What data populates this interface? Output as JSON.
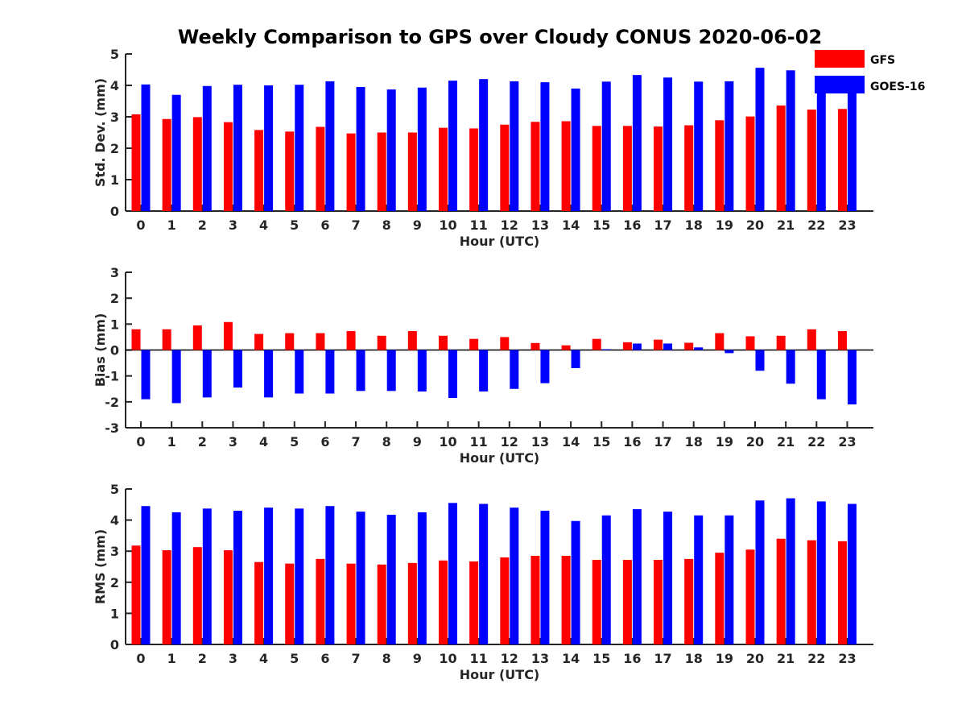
{
  "title": "Weekly Comparison to GPS over Cloudy CONUS 2020-06-02",
  "colors": {
    "GFS": "#ff0000",
    "GOES-16": "#0000ff"
  },
  "legend": {
    "position": "top-right",
    "entries": [
      "GFS",
      "GOES-16"
    ]
  },
  "chart_data": [
    {
      "type": "bar",
      "categories": [
        "0",
        "1",
        "2",
        "3",
        "4",
        "5",
        "6",
        "7",
        "8",
        "9",
        "10",
        "11",
        "12",
        "13",
        "14",
        "15",
        "16",
        "17",
        "18",
        "19",
        "20",
        "21",
        "22",
        "23"
      ],
      "xlabel": "Hour (UTC)",
      "ylabel": "Std. Dev. (mm)",
      "ylim": [
        0,
        5
      ],
      "yticks": [
        "0",
        "1",
        "2",
        "3",
        "4",
        "5"
      ],
      "series": [
        {
          "name": "GFS",
          "values": [
            3.08,
            2.93,
            2.99,
            2.83,
            2.58,
            2.53,
            2.68,
            2.47,
            2.5,
            2.5,
            2.65,
            2.63,
            2.75,
            2.84,
            2.86,
            2.71,
            2.71,
            2.69,
            2.73,
            2.89,
            3.01,
            3.36,
            3.23,
            3.25
          ]
        },
        {
          "name": "GOES-16",
          "values": [
            4.03,
            3.7,
            3.98,
            4.02,
            4.0,
            4.02,
            4.13,
            3.95,
            3.87,
            3.93,
            4.15,
            4.2,
            4.13,
            4.1,
            3.9,
            4.12,
            4.33,
            4.25,
            4.12,
            4.13,
            4.56,
            4.48,
            4.21,
            3.95
          ]
        }
      ]
    },
    {
      "type": "bar",
      "categories": [
        "0",
        "1",
        "2",
        "3",
        "4",
        "5",
        "6",
        "7",
        "8",
        "9",
        "10",
        "11",
        "12",
        "13",
        "14",
        "15",
        "16",
        "17",
        "18",
        "19",
        "20",
        "21",
        "22",
        "23"
      ],
      "xlabel": "Hour (UTC)",
      "ylabel": "Bias (mm)",
      "ylim": [
        -3,
        3
      ],
      "yticks": [
        "-3",
        "-2",
        "-1",
        "0",
        "1",
        "2",
        "3"
      ],
      "zero_line": true,
      "series": [
        {
          "name": "GFS",
          "values": [
            0.8,
            0.8,
            0.95,
            1.08,
            0.62,
            0.65,
            0.65,
            0.73,
            0.55,
            0.73,
            0.55,
            0.43,
            0.5,
            0.27,
            0.18,
            0.43,
            0.3,
            0.4,
            0.28,
            0.65,
            0.53,
            0.55,
            0.8,
            0.73
          ]
        },
        {
          "name": "GOES-16",
          "values": [
            -1.9,
            -2.05,
            -1.83,
            -1.45,
            -1.83,
            -1.68,
            -1.68,
            -1.58,
            -1.58,
            -1.6,
            -1.85,
            -1.6,
            -1.5,
            -1.28,
            -0.7,
            0.03,
            0.25,
            0.25,
            0.1,
            -0.12,
            -0.8,
            -1.3,
            -1.9,
            -2.1
          ]
        }
      ]
    },
    {
      "type": "bar",
      "categories": [
        "0",
        "1",
        "2",
        "3",
        "4",
        "5",
        "6",
        "7",
        "8",
        "9",
        "10",
        "11",
        "12",
        "13",
        "14",
        "15",
        "16",
        "17",
        "18",
        "19",
        "20",
        "21",
        "22",
        "23"
      ],
      "xlabel": "Hour (UTC)",
      "ylabel": "RMS (mm)",
      "ylim": [
        0,
        5
      ],
      "yticks": [
        "0",
        "1",
        "2",
        "3",
        "4",
        "5"
      ],
      "series": [
        {
          "name": "GFS",
          "values": [
            3.18,
            3.03,
            3.13,
            3.03,
            2.65,
            2.6,
            2.75,
            2.6,
            2.57,
            2.62,
            2.7,
            2.67,
            2.8,
            2.85,
            2.85,
            2.72,
            2.72,
            2.72,
            2.75,
            2.95,
            3.05,
            3.4,
            3.35,
            3.32
          ]
        },
        {
          "name": "GOES-16",
          "values": [
            4.45,
            4.25,
            4.37,
            4.3,
            4.4,
            4.37,
            4.45,
            4.27,
            4.17,
            4.25,
            4.55,
            4.52,
            4.4,
            4.3,
            3.97,
            4.15,
            4.35,
            4.27,
            4.15,
            4.15,
            4.63,
            4.7,
            4.6,
            4.52
          ]
        }
      ]
    }
  ]
}
